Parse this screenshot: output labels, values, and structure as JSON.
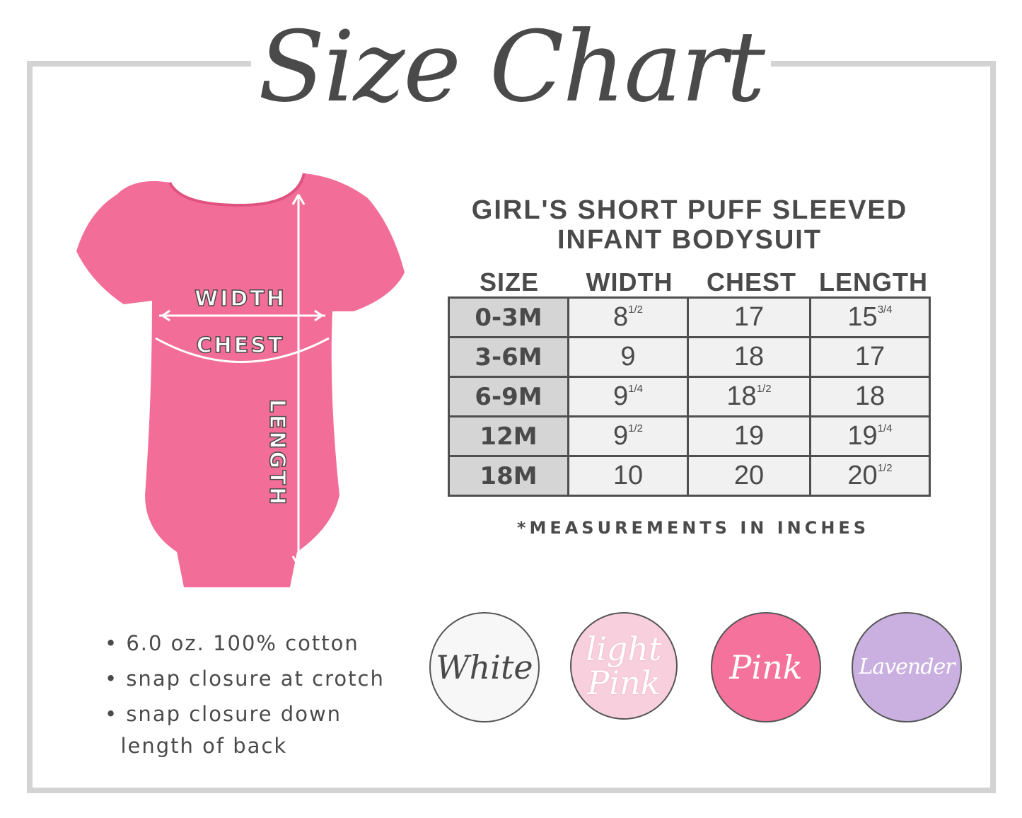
{
  "title": "Size Chart",
  "product_title": [
    "GIRL'S SHORT PUFF SLEEVED",
    "INFANT BODYSUIT"
  ],
  "diagram_labels": {
    "width": "WIDTH",
    "chest": "CHEST",
    "length": "LENGTH"
  },
  "table": {
    "headers": [
      "SIZE",
      "WIDTH",
      "CHEST",
      "LENGTH"
    ],
    "rows": [
      {
        "size": "0-3M",
        "width": {
          "whole": "8",
          "frac": "1/2"
        },
        "chest": {
          "whole": "17",
          "frac": ""
        },
        "length": {
          "whole": "15",
          "frac": "3/4"
        }
      },
      {
        "size": "3-6M",
        "width": {
          "whole": "9",
          "frac": ""
        },
        "chest": {
          "whole": "18",
          "frac": ""
        },
        "length": {
          "whole": "17",
          "frac": ""
        }
      },
      {
        "size": "6-9M",
        "width": {
          "whole": "9",
          "frac": "1/4"
        },
        "chest": {
          "whole": "18",
          "frac": "1/2"
        },
        "length": {
          "whole": "18",
          "frac": ""
        }
      },
      {
        "size": "12M",
        "width": {
          "whole": "9",
          "frac": "1/2"
        },
        "chest": {
          "whole": "19",
          "frac": ""
        },
        "length": {
          "whole": "19",
          "frac": "1/4"
        }
      },
      {
        "size": "18M",
        "width": {
          "whole": "10",
          "frac": ""
        },
        "chest": {
          "whole": "20",
          "frac": ""
        },
        "length": {
          "whole": "20",
          "frac": "1/2"
        }
      }
    ]
  },
  "note": "*MEASUREMENTS IN INCHES",
  "features": [
    "6.0 oz. 100% cotton",
    "snap closure at crotch",
    "snap closure down",
    "length of back"
  ],
  "colors": [
    {
      "name": "White",
      "hex": "#f7f7f7",
      "text": "#4a4a4a"
    },
    {
      "name": "light Pink",
      "hex": "#f8d0dd",
      "text": "#ffffff"
    },
    {
      "name": "Pink",
      "hex": "#f4729c",
      "text": "#ffffff"
    },
    {
      "name": "Lavender",
      "hex": "#c9b0e0",
      "text": "#ffffff"
    }
  ],
  "bodysuit_color": "#f26e98"
}
